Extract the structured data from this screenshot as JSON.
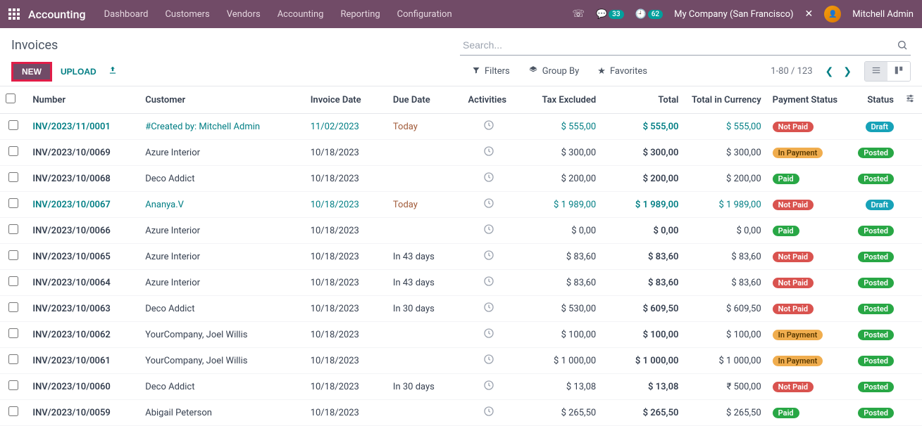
{
  "nav": {
    "brand": "Accounting",
    "links": [
      "Dashboard",
      "Customers",
      "Vendors",
      "Accounting",
      "Reporting",
      "Configuration"
    ],
    "chat_count": "33",
    "clock_count": "62",
    "company": "My Company (San Francisco)",
    "user": "Mitchell Admin"
  },
  "header": {
    "title": "Invoices",
    "search_placeholder": "Search...",
    "btn_new": "NEW",
    "btn_upload": "UPLOAD",
    "filters": "Filters",
    "groupby": "Group By",
    "favorites": "Favorites",
    "pager": "1-80 / 123"
  },
  "columns": {
    "number": "Number",
    "customer": "Customer",
    "invoice_date": "Invoice Date",
    "due_date": "Due Date",
    "activities": "Activities",
    "tax_excluded": "Tax Excluded",
    "total": "Total",
    "total_currency": "Total in Currency",
    "payment_status": "Payment Status",
    "status": "Status"
  },
  "rows": [
    {
      "number": "INV/2023/11/0001",
      "customer": "#Created by: Mitchell Admin",
      "date": "11/02/2023",
      "due": "Today",
      "tax": "$ 555,00",
      "total": "$ 555,00",
      "cur": "$ 555,00",
      "pay": "Not Paid",
      "pay_cls": "pill-notpaid",
      "status": "Draft",
      "status_cls": "pill-draft",
      "highlight": true,
      "due_crimson": true
    },
    {
      "number": "INV/2023/10/0069",
      "customer": "Azure Interior",
      "date": "10/18/2023",
      "due": "",
      "tax": "$ 300,00",
      "total": "$ 300,00",
      "cur": "$ 300,00",
      "pay": "In Payment",
      "pay_cls": "pill-inpay",
      "status": "Posted",
      "status_cls": "pill-posted"
    },
    {
      "number": "INV/2023/10/0068",
      "customer": "Deco Addict",
      "date": "10/18/2023",
      "due": "",
      "tax": "$ 200,00",
      "total": "$ 200,00",
      "cur": "$ 200,00",
      "pay": "Paid",
      "pay_cls": "pill-paid",
      "status": "Posted",
      "status_cls": "pill-posted"
    },
    {
      "number": "INV/2023/10/0067",
      "customer": "Ananya.V",
      "date": "10/18/2023",
      "due": "Today",
      "tax": "$ 1 989,00",
      "total": "$ 1 989,00",
      "cur": "$ 1 989,00",
      "pay": "Not Paid",
      "pay_cls": "pill-notpaid",
      "status": "Draft",
      "status_cls": "pill-draft",
      "highlight": true,
      "due_crimson": true
    },
    {
      "number": "INV/2023/10/0066",
      "customer": "Azure Interior",
      "date": "10/18/2023",
      "due": "",
      "tax": "$ 0,00",
      "total": "$ 0,00",
      "cur": "$ 0,00",
      "pay": "Paid",
      "pay_cls": "pill-paid",
      "status": "Posted",
      "status_cls": "pill-posted"
    },
    {
      "number": "INV/2023/10/0065",
      "customer": "Azure Interior",
      "date": "10/18/2023",
      "due": "In 43 days",
      "tax": "$ 83,60",
      "total": "$ 83,60",
      "cur": "$ 83,60",
      "pay": "Not Paid",
      "pay_cls": "pill-notpaid",
      "status": "Posted",
      "status_cls": "pill-posted"
    },
    {
      "number": "INV/2023/10/0064",
      "customer": "Azure Interior",
      "date": "10/18/2023",
      "due": "In 43 days",
      "tax": "$ 83,60",
      "total": "$ 83,60",
      "cur": "$ 83,60",
      "pay": "Not Paid",
      "pay_cls": "pill-notpaid",
      "status": "Posted",
      "status_cls": "pill-posted"
    },
    {
      "number": "INV/2023/10/0063",
      "customer": "Deco Addict",
      "date": "10/18/2023",
      "due": "In 30 days",
      "tax": "$ 530,00",
      "total": "$ 609,50",
      "cur": "$ 609,50",
      "pay": "Not Paid",
      "pay_cls": "pill-notpaid",
      "status": "Posted",
      "status_cls": "pill-posted"
    },
    {
      "number": "INV/2023/10/0062",
      "customer": "YourCompany, Joel Willis",
      "date": "10/18/2023",
      "due": "",
      "tax": "$ 100,00",
      "total": "$ 100,00",
      "cur": "$ 100,00",
      "pay": "In Payment",
      "pay_cls": "pill-inpay",
      "status": "Posted",
      "status_cls": "pill-posted"
    },
    {
      "number": "INV/2023/10/0061",
      "customer": "YourCompany, Joel Willis",
      "date": "10/18/2023",
      "due": "",
      "tax": "$ 1 000,00",
      "total": "$ 1 000,00",
      "cur": "$ 1 000,00",
      "pay": "In Payment",
      "pay_cls": "pill-inpay",
      "status": "Posted",
      "status_cls": "pill-posted"
    },
    {
      "number": "INV/2023/10/0060",
      "customer": "Deco Addict",
      "date": "10/18/2023",
      "due": "In 30 days",
      "tax": "$ 13,08",
      "total": "$ 13,08",
      "cur": "₹ 500,00",
      "pay": "Not Paid",
      "pay_cls": "pill-notpaid",
      "status": "Posted",
      "status_cls": "pill-posted"
    },
    {
      "number": "INV/2023/10/0059",
      "customer": "Abigail Peterson",
      "date": "10/18/2023",
      "due": "",
      "tax": "$ 265,50",
      "total": "$ 265,50",
      "cur": "$ 265,50",
      "pay": "Paid",
      "pay_cls": "pill-paid",
      "status": "Posted",
      "status_cls": "pill-posted"
    }
  ]
}
